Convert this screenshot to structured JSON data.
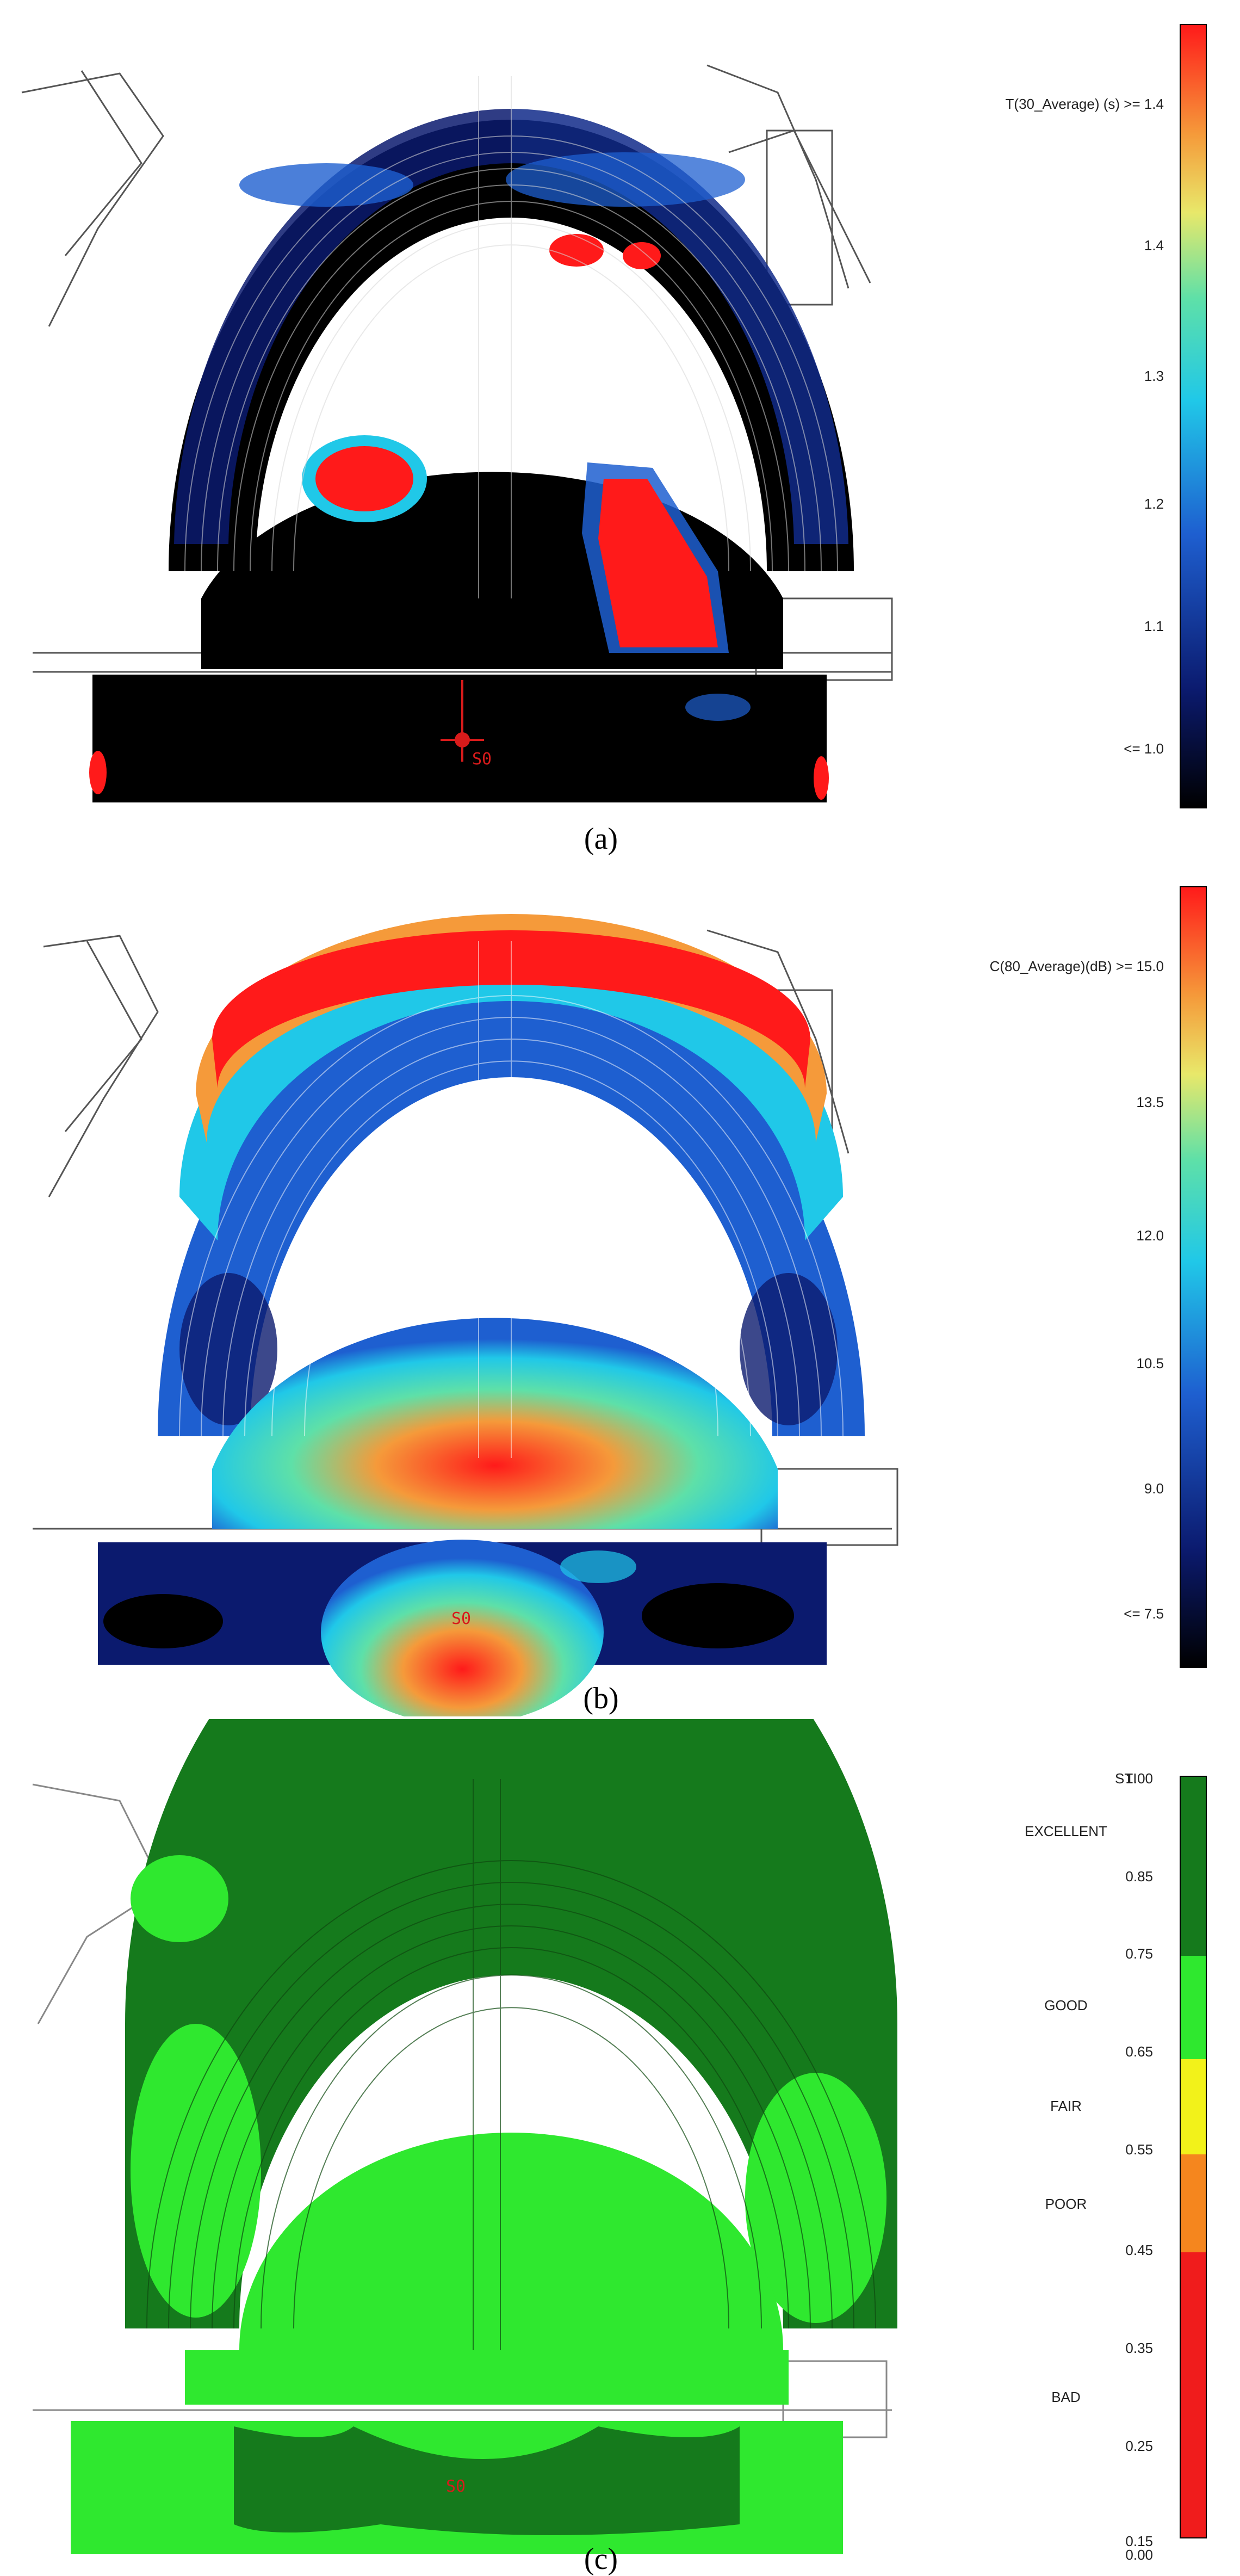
{
  "panels": [
    {
      "id": "a",
      "caption": "(a)",
      "source_label": "S0",
      "legend": {
        "title": "T(30_Average) (s) >= 1.4",
        "ticks": [
          "1.4",
          "1.3",
          "1.2",
          "1.1",
          "<= 1.0"
        ],
        "colors": [
          "#000000",
          "#0b1a6e",
          "#1e5fd0",
          "#20c8e8",
          "#5ee0a8",
          "#e8e86a",
          "#f59a3a",
          "#ff1a1a"
        ]
      }
    },
    {
      "id": "b",
      "caption": "(b)",
      "source_label": "S0",
      "legend": {
        "title": "C(80_Average)(dB) >= 15.0",
        "ticks": [
          "13.5",
          "12.0",
          "10.5",
          "9.0",
          "<= 7.5"
        ],
        "colors": [
          "#000000",
          "#0b1a6e",
          "#1e5fd0",
          "#20c8e8",
          "#5ee0a8",
          "#e8e86a",
          "#f59a3a",
          "#ff1a1a"
        ]
      }
    },
    {
      "id": "c",
      "caption": "(c)",
      "source_label": "S0",
      "legend": {
        "header_label": "STI",
        "ticks": [
          "1.00",
          "0.85",
          "0.75",
          "0.65",
          "0.55",
          "0.45",
          "0.35",
          "0.25",
          "0.15",
          "0.00"
        ],
        "categories": [
          "EXCELLENT",
          "GOOD",
          "FAIR",
          "POOR",
          "BAD"
        ],
        "colors": {
          "excellent": "#157a1c",
          "good": "#2fe82f",
          "fair": "#f2f21a",
          "poor": "#f5861e",
          "bad": "#f01c1c"
        }
      }
    }
  ]
}
